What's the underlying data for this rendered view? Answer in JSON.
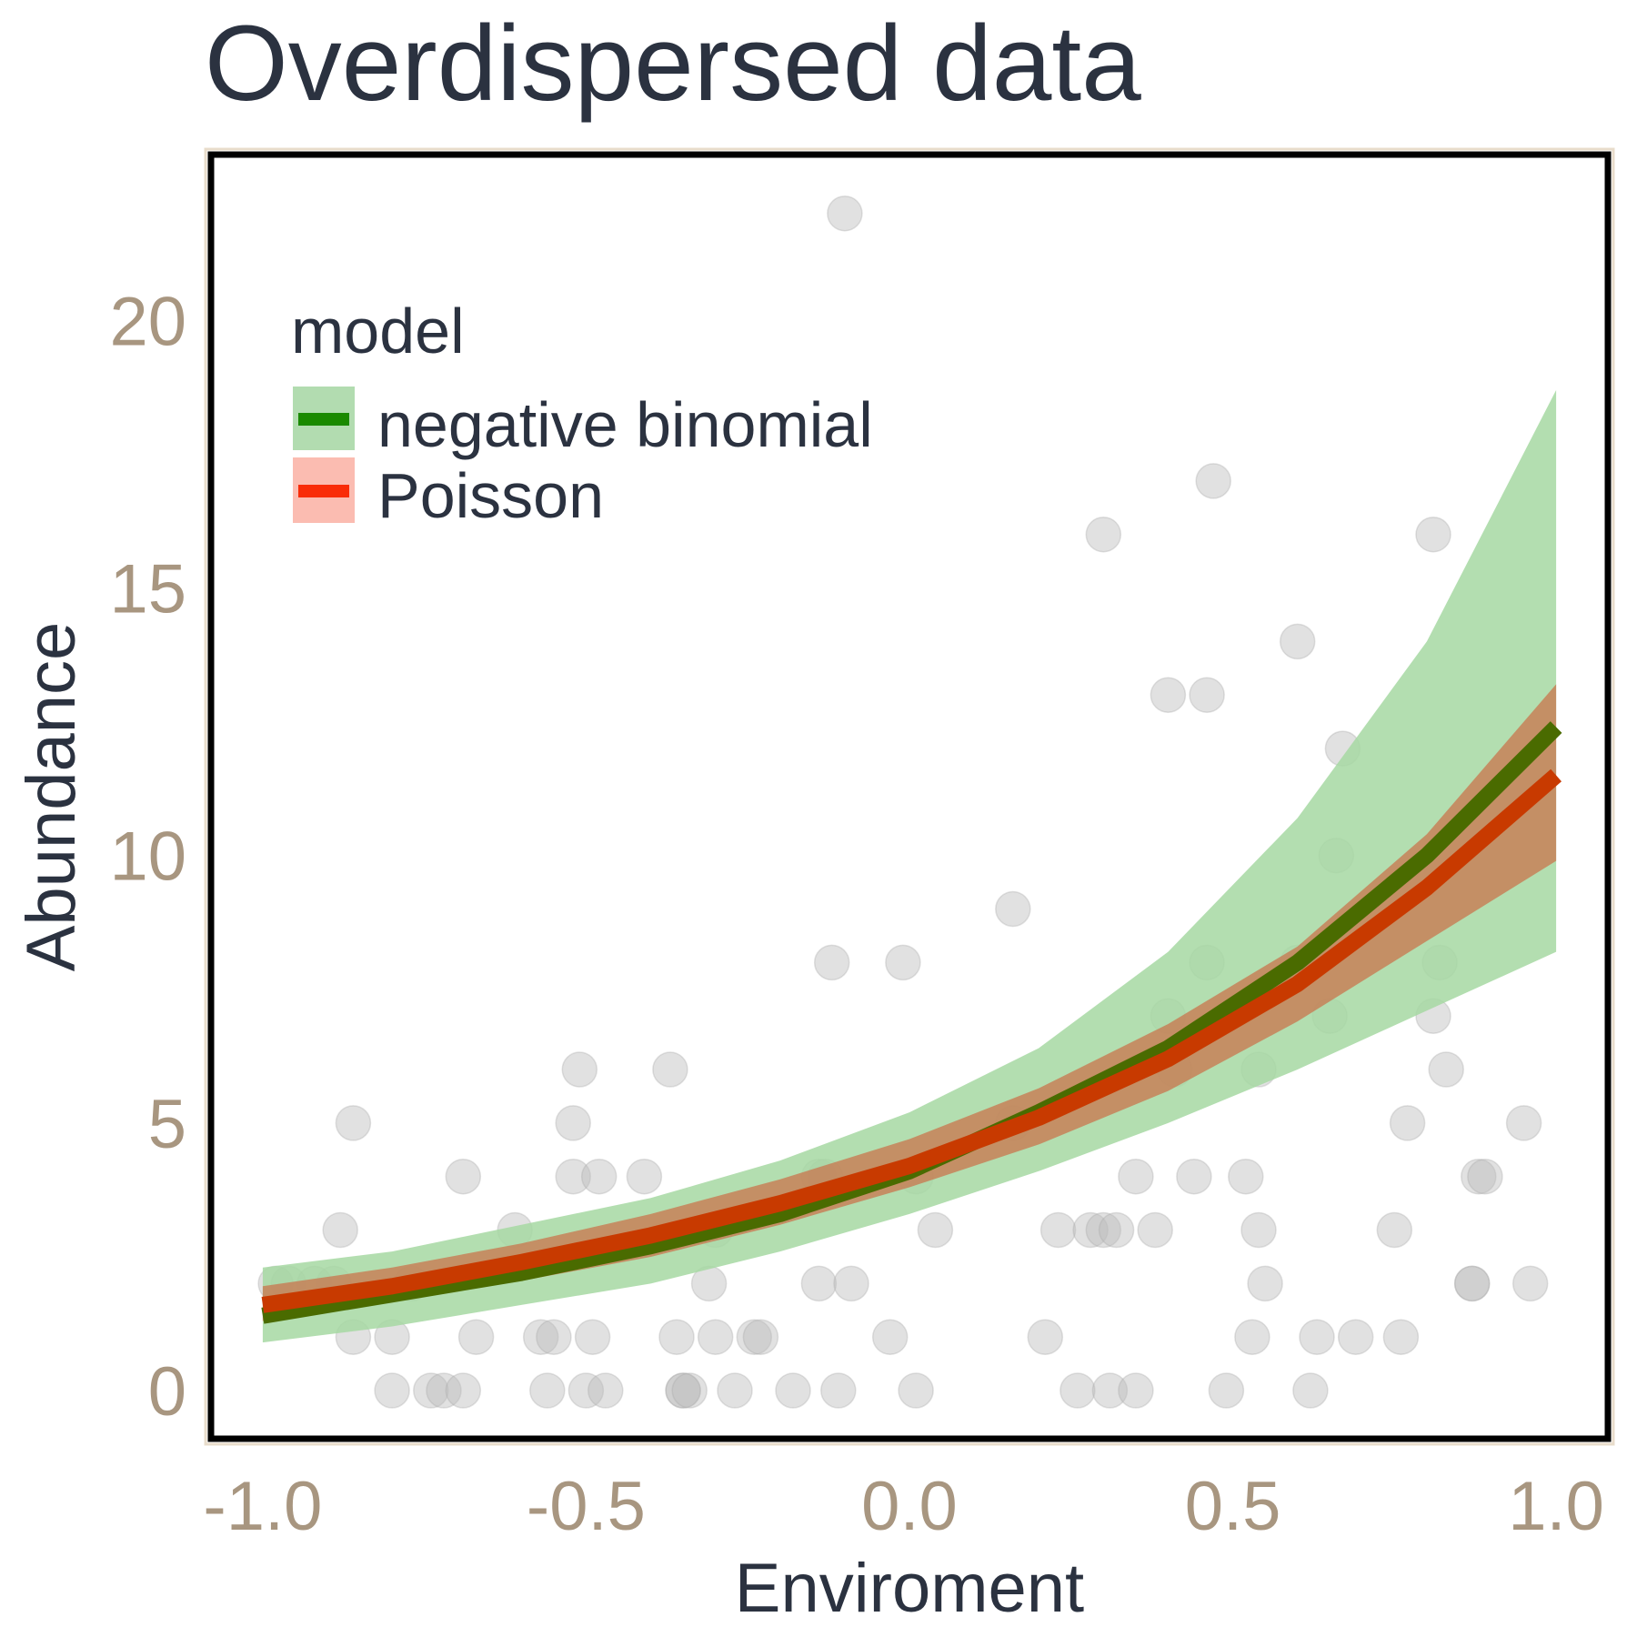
{
  "chart_data": {
    "type": "line",
    "title": "Overdispersed data",
    "xlabel": "Enviroment",
    "ylabel": "Abundance",
    "xlim": [
      -1.08,
      1.08
    ],
    "ylim": [
      -0.9,
      23.1
    ],
    "x_ticks": [
      -1.0,
      -0.5,
      0.0,
      0.5,
      1.0
    ],
    "x_tick_labels": [
      "-1.0",
      "-0.5",
      "0.0",
      "0.5",
      "1.0"
    ],
    "y_ticks": [
      0,
      5,
      10,
      15,
      20
    ],
    "y_tick_labels": [
      "0",
      "5",
      "10",
      "15",
      "20"
    ],
    "grid": false,
    "legend": {
      "title": "model",
      "placement": "top-left",
      "entries": [
        {
          "label": "negative binomial",
          "line_color": "#1a8a00",
          "fill_color": "#b2dcb0"
        },
        {
          "label": "Poisson",
          "line_color": "#f92c08",
          "fill_color": "#fbbcb1"
        }
      ]
    },
    "series": [
      {
        "name": "negative binomial",
        "color": "#4a6b00",
        "band_color": "#a6d8a2",
        "x": [
          -1.0,
          -0.8,
          -0.6,
          -0.4,
          -0.2,
          0.0,
          0.2,
          0.4,
          0.6,
          0.8,
          1.0
        ],
        "y": [
          1.4,
          1.8,
          2.2,
          2.7,
          3.3,
          4.1,
          5.2,
          6.4,
          8.0,
          10.0,
          12.4
        ],
        "lower": [
          0.9,
          1.2,
          1.6,
          2.0,
          2.6,
          3.3,
          4.1,
          5.0,
          6.0,
          7.1,
          8.2
        ],
        "upper": [
          2.3,
          2.6,
          3.1,
          3.6,
          4.3,
          5.2,
          6.4,
          8.2,
          10.7,
          14.0,
          18.7
        ]
      },
      {
        "name": "Poisson",
        "color": "#c83a00",
        "band_color": "#c87a52",
        "x": [
          -1.0,
          -0.8,
          -0.6,
          -0.4,
          -0.2,
          0.0,
          0.2,
          0.4,
          0.6,
          0.8,
          1.0
        ],
        "y": [
          1.6,
          1.95,
          2.4,
          2.9,
          3.5,
          4.2,
          5.1,
          6.2,
          7.6,
          9.4,
          11.5
        ],
        "lower": [
          1.3,
          1.65,
          2.05,
          2.5,
          3.1,
          3.8,
          4.6,
          5.6,
          6.9,
          8.4,
          9.9
        ],
        "upper": [
          1.95,
          2.3,
          2.75,
          3.3,
          3.95,
          4.7,
          5.65,
          6.85,
          8.3,
          10.4,
          13.2
        ]
      }
    ],
    "points": {
      "color": "#bdbdbd",
      "opacity": 0.45,
      "data": [
        [
          -0.98,
          2
        ],
        [
          -0.96,
          2
        ],
        [
          -0.92,
          2
        ],
        [
          -0.89,
          2
        ],
        [
          -0.88,
          3
        ],
        [
          -0.86,
          1
        ],
        [
          -0.86,
          5
        ],
        [
          -0.8,
          0
        ],
        [
          -0.8,
          1
        ],
        [
          -0.77,
          2
        ],
        [
          -0.74,
          0
        ],
        [
          -0.72,
          0
        ],
        [
          -0.69,
          0
        ],
        [
          -0.69,
          4
        ],
        [
          -0.67,
          1
        ],
        [
          -0.61,
          3
        ],
        [
          -0.57,
          1
        ],
        [
          -0.56,
          0
        ],
        [
          -0.55,
          1
        ],
        [
          -0.52,
          5
        ],
        [
          -0.52,
          4
        ],
        [
          -0.51,
          6
        ],
        [
          -0.5,
          0
        ],
        [
          -0.49,
          1
        ],
        [
          -0.48,
          4
        ],
        [
          -0.47,
          0
        ],
        [
          -0.41,
          4
        ],
        [
          -0.37,
          6
        ],
        [
          -0.36,
          1
        ],
        [
          -0.35,
          0
        ],
        [
          -0.35,
          0
        ],
        [
          -0.34,
          0
        ],
        [
          -0.31,
          2
        ],
        [
          -0.3,
          3
        ],
        [
          -0.3,
          1
        ],
        [
          -0.27,
          0
        ],
        [
          -0.24,
          1
        ],
        [
          -0.23,
          1
        ],
        [
          -0.18,
          0
        ],
        [
          -0.14,
          2
        ],
        [
          -0.14,
          4
        ],
        [
          -0.13,
          4
        ],
        [
          -0.12,
          8
        ],
        [
          -0.11,
          0
        ],
        [
          -0.1,
          22
        ],
        [
          -0.09,
          2
        ],
        [
          -0.03,
          1
        ],
        [
          -0.01,
          8
        ],
        [
          0.01,
          0
        ],
        [
          0.01,
          4
        ],
        [
          0.04,
          3
        ],
        [
          0.16,
          9
        ],
        [
          0.16,
          5
        ],
        [
          0.21,
          1
        ],
        [
          0.23,
          3
        ],
        [
          0.26,
          0
        ],
        [
          0.28,
          3
        ],
        [
          0.3,
          3
        ],
        [
          0.3,
          16
        ],
        [
          0.31,
          0
        ],
        [
          0.32,
          3
        ],
        [
          0.35,
          0
        ],
        [
          0.35,
          4
        ],
        [
          0.38,
          3
        ],
        [
          0.4,
          13
        ],
        [
          0.4,
          7
        ],
        [
          0.41,
          6
        ],
        [
          0.44,
          4
        ],
        [
          0.46,
          13
        ],
        [
          0.46,
          8
        ],
        [
          0.47,
          17
        ],
        [
          0.49,
          0
        ],
        [
          0.52,
          4
        ],
        [
          0.53,
          1
        ],
        [
          0.54,
          3
        ],
        [
          0.54,
          6
        ],
        [
          0.55,
          2
        ],
        [
          0.6,
          14
        ],
        [
          0.6,
          8
        ],
        [
          0.62,
          0
        ],
        [
          0.63,
          1
        ],
        [
          0.65,
          7
        ],
        [
          0.66,
          10
        ],
        [
          0.67,
          12
        ],
        [
          0.69,
          1
        ],
        [
          0.75,
          3
        ],
        [
          0.76,
          1
        ],
        [
          0.77,
          5
        ],
        [
          0.81,
          16
        ],
        [
          0.81,
          7
        ],
        [
          0.82,
          8
        ],
        [
          0.83,
          6
        ],
        [
          0.87,
          2
        ],
        [
          0.87,
          2
        ],
        [
          0.88,
          4
        ],
        [
          0.89,
          4
        ],
        [
          0.95,
          5
        ],
        [
          0.96,
          2
        ]
      ]
    }
  }
}
